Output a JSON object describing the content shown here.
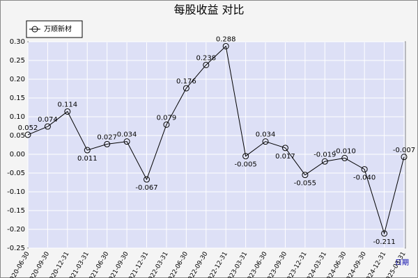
{
  "chart_data": {
    "type": "line",
    "title": "每股收益  对比",
    "x_label": "日期",
    "categories": [
      "2020-06-30",
      "2020-09-30",
      "2020-12-31",
      "2021-03-31",
      "2021-06-30",
      "2021-09-30",
      "2021-12-31",
      "2022-03-31",
      "2022-06-30",
      "2022-09-30",
      "2022-12-31",
      "2023-03-31",
      "2023-06-30",
      "2023-09-30",
      "2023-12-31",
      "2024-03-31",
      "2024-06-30",
      "2024-09-30",
      "2024-12-31",
      "2025-03-31"
    ],
    "series": [
      {
        "name": "万顺新材",
        "color": "#000000",
        "values": [
          0.052,
          0.074,
          0.114,
          0.011,
          0.027,
          0.034,
          -0.067,
          0.079,
          0.176,
          0.238,
          0.288,
          -0.005,
          0.034,
          0.017,
          -0.055,
          -0.019,
          -0.01,
          -0.04,
          -0.211,
          -0.007
        ],
        "value_labels": [
          "0.052",
          "0.074",
          "0.114",
          "0.011",
          "0.027",
          "0.034",
          "-0.067",
          "0.079",
          "0.176",
          "0.238",
          "0.288",
          "-0.005",
          "0.034",
          "0.017",
          "-0.055",
          "-0.019",
          "-0.010",
          "-0.040",
          "-0.211",
          "-0.007"
        ]
      }
    ],
    "ylim": [
      -0.25,
      0.3
    ],
    "yticks": [
      {
        "value": -0.25,
        "label": "-0.25"
      },
      {
        "value": -0.2,
        "label": "-0.20"
      },
      {
        "value": -0.15,
        "label": "-0.15"
      },
      {
        "value": -0.1,
        "label": "-0.10"
      },
      {
        "value": -0.05,
        "label": "-0.05"
      },
      {
        "value": 0,
        "label": "0.00"
      },
      {
        "value": 0.05,
        "label": "0.05"
      },
      {
        "value": 0.1,
        "label": "0.10"
      },
      {
        "value": 0.15,
        "label": "0.15"
      },
      {
        "value": 0.2,
        "label": "0.20"
      },
      {
        "value": 0.25,
        "label": "0.25"
      },
      {
        "value": 0.3,
        "label": "0.30"
      }
    ],
    "grid": true,
    "legend": "top-left"
  }
}
